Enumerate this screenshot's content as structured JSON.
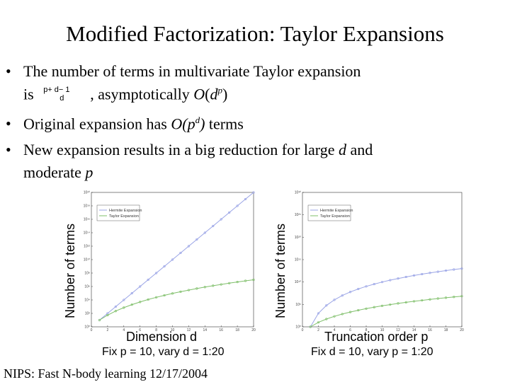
{
  "title": "Modified Factorization: Taylor Expansions",
  "bullets": {
    "b1_line1": "The number of terms in multivariate Taylor expansion",
    "b1_is": "is",
    "b1_binom_top": "p+ d− 1",
    "b1_binom_bottom": "d",
    "b1_asym_prefix": ", asymptotically ",
    "b1_asym_o": "O",
    "b1_asym_open": "(",
    "b1_asym_d": "d",
    "b1_asym_p": "p",
    "b1_asym_close": ")",
    "b2_prefix": "Original expansion has ",
    "b2_o": "O",
    "b2_open": "(",
    "b2_p": "p",
    "b2_d": "d",
    "b2_close": ")",
    "b2_suffix": " terms",
    "b3_prefix": "New expansion results in a big reduction for large ",
    "b3_d": "d",
    "b3_and": " and",
    "b3_line2": "moderate ",
    "b3_p": "p",
    "bullet_symbol": "•"
  },
  "footer": "NIPS: Fast N-body learning 12/17/2004",
  "colors": {
    "hermite": "#9aa4e6",
    "taylor": "#7fbf6a",
    "axis": "#333333"
  },
  "chart_data": [
    {
      "type": "line",
      "ylabel": "Number of terms",
      "xlabel": "Dimension d",
      "caption": "Fix p = 10, vary d = 1:20",
      "yscale": "log",
      "xlim": [
        0,
        20
      ],
      "ylim_exponents": [
        0,
        20
      ],
      "x_ticks": [
        "0",
        "2",
        "4",
        "6",
        "8",
        "10",
        "12",
        "14",
        "16",
        "18",
        "20"
      ],
      "y_ticks": [
        "10⁰",
        "10²",
        "10⁴",
        "10⁶",
        "10⁸",
        "10¹⁰",
        "10¹²",
        "10¹⁴",
        "10¹⁶",
        "10¹⁸",
        "10²⁰"
      ],
      "legend_position": "top-left",
      "x": [
        1,
        2,
        3,
        4,
        5,
        6,
        7,
        8,
        9,
        10,
        11,
        12,
        13,
        14,
        15,
        16,
        17,
        18,
        19,
        20
      ],
      "series": [
        {
          "name": "Hermite Expansion",
          "values": [
            10,
            100,
            1000,
            10000,
            100000,
            1000000,
            10000000,
            100000000,
            1000000000,
            10000000000,
            100000000000,
            1000000000000,
            10000000000000,
            100000000000000,
            1000000000000000,
            10000000000000000,
            100000000000000000,
            1000000000000000000,
            10000000000000000000,
            100000000000000000000
          ]
        },
        {
          "name": "Taylor Expansion",
          "values": [
            10,
            55,
            220,
            715,
            2002,
            5005,
            11440,
            24310,
            48620,
            92378,
            167960,
            293930,
            497420,
            817190,
            1307504,
            2042975,
            3124550,
            4686825,
            6906900,
            10015005
          ]
        }
      ]
    },
    {
      "type": "line",
      "ylabel": "Number of terms",
      "xlabel": "Truncation order p",
      "caption": "Fix d = 10, vary p = 1:20",
      "yscale": "log",
      "xlim": [
        0,
        20
      ],
      "ylim_exponents": [
        0,
        30
      ],
      "x_ticks": [
        "0",
        "2",
        "4",
        "6",
        "8",
        "10",
        "12",
        "14",
        "16",
        "18",
        "20"
      ],
      "y_ticks": [
        "10⁰",
        "10⁵",
        "10¹⁰",
        "10¹⁵",
        "10²⁰",
        "10²⁵",
        "10³⁰"
      ],
      "legend_position": "top-left",
      "x": [
        1,
        2,
        3,
        4,
        5,
        6,
        7,
        8,
        9,
        10,
        11,
        12,
        13,
        14,
        15,
        16,
        17,
        18,
        19,
        20
      ],
      "series": [
        {
          "name": "Hermite Expansion",
          "values": [
            1,
            1024,
            59049,
            1048576,
            9765625,
            60466176,
            282475249,
            1073741824,
            3486784401,
            10000000000,
            25937424601,
            61917364224,
            137858491849,
            289254654976,
            576650390625,
            1099511627776,
            2015993900449,
            3570467226624,
            6131066257801,
            10240000000000
          ]
        },
        {
          "name": "Taylor Expansion",
          "values": [
            1,
            10,
            55,
            220,
            715,
            2002,
            5005,
            11440,
            24310,
            48620,
            92378,
            167960,
            293930,
            497420,
            817190,
            1307504,
            2042975,
            3124550,
            4686825,
            6906900
          ]
        }
      ]
    }
  ]
}
